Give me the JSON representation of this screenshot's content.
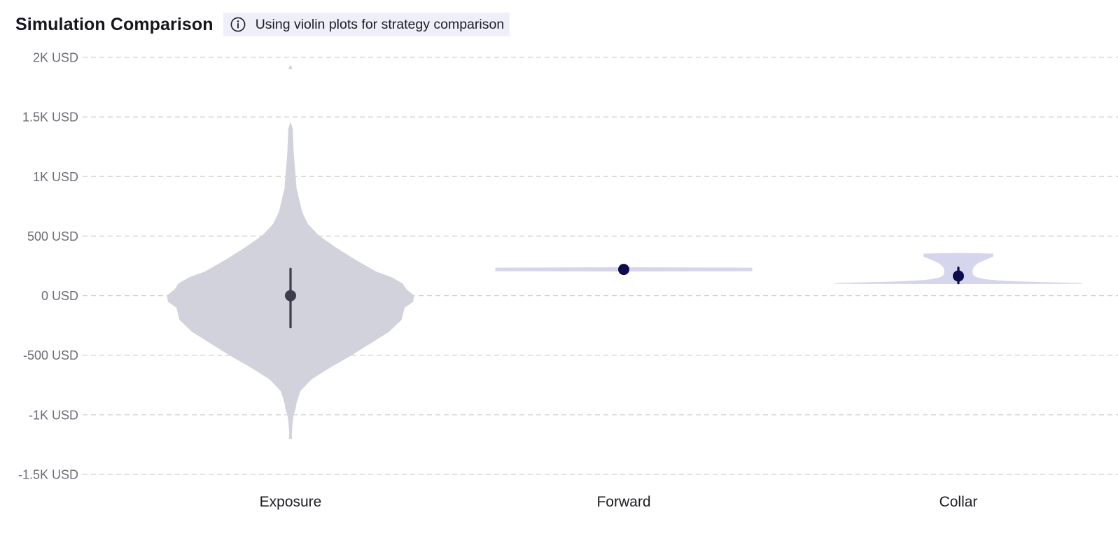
{
  "header": {
    "title": "Simulation Comparison",
    "badge_text": "Using violin plots for strategy comparison",
    "badge_icon": "info-icon"
  },
  "chart_data": {
    "type": "violin",
    "title": "Simulation Comparison",
    "xlabel": "",
    "ylabel": "",
    "grid": true,
    "ylim": [
      -1500,
      2000
    ],
    "yticks": [
      {
        "value": 2000,
        "label": "2K USD"
      },
      {
        "value": 1500,
        "label": "1.5K USD"
      },
      {
        "value": 1000,
        "label": "1K USD"
      },
      {
        "value": 500,
        "label": "500 USD"
      },
      {
        "value": 0,
        "label": "0 USD"
      },
      {
        "value": -500,
        "label": "-500 USD"
      },
      {
        "value": -1000,
        "label": "-1K USD"
      },
      {
        "value": -1500,
        "label": "-1.5K USD"
      }
    ],
    "categories": [
      "Exposure",
      "Forward",
      "Collar"
    ],
    "series": [
      {
        "category": "Exposure",
        "color": "#d2d2dd",
        "marker_color": "#3c3c4a",
        "median": 0,
        "interval": [
          -265,
          225
        ],
        "min": -1200,
        "max": 1940,
        "density": [
          [
            -1200,
            0.01
          ],
          [
            -1150,
            0.01
          ],
          [
            -1050,
            0.02
          ],
          [
            -1000,
            0.03
          ],
          [
            -950,
            0.05
          ],
          [
            -900,
            0.06
          ],
          [
            -800,
            0.1
          ],
          [
            -700,
            0.22
          ],
          [
            -600,
            0.42
          ],
          [
            -500,
            0.64
          ],
          [
            -400,
            0.84
          ],
          [
            -300,
            1.04
          ],
          [
            -200,
            1.17
          ],
          [
            -100,
            1.2
          ],
          [
            -50,
            1.29
          ],
          [
            0,
            1.3
          ],
          [
            50,
            1.22
          ],
          [
            100,
            1.18
          ],
          [
            150,
            1.07
          ],
          [
            200,
            0.9
          ],
          [
            300,
            0.68
          ],
          [
            400,
            0.48
          ],
          [
            500,
            0.3
          ],
          [
            600,
            0.18
          ],
          [
            700,
            0.12
          ],
          [
            800,
            0.09
          ],
          [
            900,
            0.06
          ],
          [
            1000,
            0.05
          ],
          [
            1100,
            0.04
          ],
          [
            1200,
            0.03
          ],
          [
            1300,
            0.025
          ],
          [
            1400,
            0.02
          ],
          [
            1450,
            0.0
          ]
        ],
        "outlier_tips": [
          [
            -1200,
            -1170
          ],
          [
            1900,
            1940
          ]
        ]
      },
      {
        "category": "Forward",
        "color": "#d5d5ee",
        "marker_color": "#0d0d4d",
        "median": 220,
        "interval": [
          220,
          220
        ],
        "min": 210,
        "max": 230,
        "density": [
          [
            205,
            0.0
          ],
          [
            208,
            1.0
          ],
          [
            220,
            1.0
          ],
          [
            232,
            1.0
          ],
          [
            235,
            0.0
          ]
        ]
      },
      {
        "category": "Collar",
        "color": "#d5d5ee",
        "marker_color": "#0d0d4d",
        "median": 165,
        "interval": [
          105,
          235
        ],
        "min": 100,
        "max": 355,
        "density": [
          [
            100,
            0.0
          ],
          [
            102,
            1.0
          ],
          [
            107,
            0.85
          ],
          [
            112,
            0.62
          ],
          [
            118,
            0.45
          ],
          [
            125,
            0.32
          ],
          [
            135,
            0.22
          ],
          [
            150,
            0.15
          ],
          [
            170,
            0.12
          ],
          [
            200,
            0.11
          ],
          [
            240,
            0.12
          ],
          [
            270,
            0.15
          ],
          [
            300,
            0.21
          ],
          [
            330,
            0.28
          ],
          [
            350,
            0.28
          ],
          [
            356,
            0.0
          ]
        ]
      }
    ]
  }
}
